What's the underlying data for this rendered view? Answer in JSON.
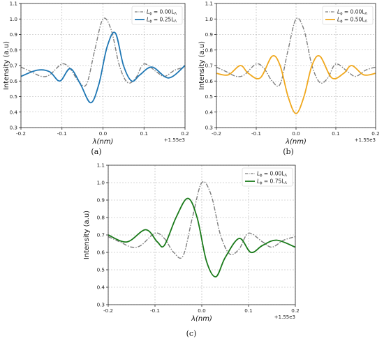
{
  "chart_data": [
    {
      "type": "line",
      "panel_label": "(a)",
      "xlabel": "λ(nm)",
      "ylabel": "Intensity (a.u)",
      "x_offset_text": "+1.55e3",
      "xlim": [
        -0.2,
        0.2
      ],
      "ylim": [
        0.3,
        1.1
      ],
      "xticks": [
        "-0.2",
        "-0.1",
        "0.0",
        "0.1",
        "0.2"
      ],
      "yticks": [
        "0.3",
        "0.4",
        "0.5",
        "0.6",
        "0.7",
        "0.8",
        "0.9",
        "1.0",
        "1.1"
      ],
      "grid": true,
      "legend_position": "top-right",
      "series": [
        {
          "name": "Lϕ = 0.00LΛ",
          "legend_main": "L",
          "legend_sub1": "ϕ",
          "legend_mid": " = 0.00L",
          "legend_sub2": "Λ",
          "color": "#7f7f7f",
          "dash": "dashdot",
          "x": [
            -0.2,
            -0.175,
            -0.15,
            -0.13,
            -0.1,
            -0.08,
            -0.06,
            -0.04,
            -0.02,
            0.0,
            0.02,
            0.04,
            0.06,
            0.08,
            0.1,
            0.13,
            0.15,
            0.175,
            0.2
          ],
          "y": [
            0.69,
            0.66,
            0.63,
            0.64,
            0.71,
            0.68,
            0.6,
            0.58,
            0.8,
            1.0,
            0.93,
            0.7,
            0.59,
            0.62,
            0.71,
            0.66,
            0.63,
            0.67,
            0.69
          ]
        },
        {
          "name": "Lϕ = 0.25LΛ",
          "legend_main": "L",
          "legend_sub1": "ϕ",
          "legend_mid": " = 0.25L",
          "legend_sub2": "Λ",
          "color": "#1f77b4",
          "dash": "solid",
          "x": [
            -0.2,
            -0.16,
            -0.13,
            -0.105,
            -0.08,
            -0.055,
            -0.03,
            -0.01,
            0.01,
            0.03,
            0.05,
            0.07,
            0.09,
            0.12,
            0.16,
            0.2
          ],
          "y": [
            0.63,
            0.67,
            0.66,
            0.6,
            0.68,
            0.58,
            0.46,
            0.58,
            0.82,
            0.91,
            0.7,
            0.6,
            0.64,
            0.69,
            0.62,
            0.7
          ]
        }
      ]
    },
    {
      "type": "line",
      "panel_label": "(b)",
      "xlabel": "λ(nm)",
      "ylabel": "Intensity (a.u)",
      "x_offset_text": "+1.55e3",
      "xlim": [
        -0.2,
        0.2
      ],
      "ylim": [
        0.3,
        1.1
      ],
      "xticks": [
        "-0.2",
        "-0.1",
        "0.0",
        "0.1",
        "0.2"
      ],
      "yticks": [
        "0.3",
        "0.4",
        "0.5",
        "0.6",
        "0.7",
        "0.8",
        "0.9",
        "1.0",
        "1.1"
      ],
      "grid": true,
      "legend_position": "top-right",
      "series": [
        {
          "name": "Lϕ = 0.00LΛ",
          "legend_main": "L",
          "legend_sub1": "ϕ",
          "legend_mid": " = 0.00L",
          "legend_sub2": "Λ",
          "color": "#7f7f7f",
          "dash": "dashdot",
          "x": [
            -0.2,
            -0.175,
            -0.15,
            -0.13,
            -0.1,
            -0.08,
            -0.06,
            -0.04,
            -0.02,
            0.0,
            0.02,
            0.04,
            0.06,
            0.08,
            0.1,
            0.13,
            0.15,
            0.175,
            0.2
          ],
          "y": [
            0.69,
            0.66,
            0.63,
            0.64,
            0.71,
            0.68,
            0.6,
            0.58,
            0.8,
            1.0,
            0.93,
            0.7,
            0.59,
            0.62,
            0.71,
            0.66,
            0.63,
            0.67,
            0.69
          ]
        },
        {
          "name": "Lϕ = 0.50LΛ",
          "legend_main": "L",
          "legend_sub1": "ϕ",
          "legend_mid": " = 0.50L",
          "legend_sub2": "Λ",
          "color": "#f0a81e",
          "dash": "solid",
          "x": [
            -0.2,
            -0.17,
            -0.14,
            -0.12,
            -0.09,
            -0.06,
            -0.04,
            -0.02,
            0.0,
            0.02,
            0.04,
            0.06,
            0.09,
            0.12,
            0.14,
            0.17,
            0.2
          ],
          "y": [
            0.65,
            0.64,
            0.7,
            0.65,
            0.62,
            0.76,
            0.7,
            0.5,
            0.39,
            0.5,
            0.7,
            0.76,
            0.62,
            0.65,
            0.7,
            0.64,
            0.65
          ]
        }
      ]
    },
    {
      "type": "line",
      "panel_label": "(c)",
      "xlabel": "λ(nm)",
      "ylabel": "Intensity (a.u)",
      "x_offset_text": "+1.55e3",
      "xlim": [
        -0.2,
        0.2
      ],
      "ylim": [
        0.3,
        1.1
      ],
      "xticks": [
        "-0.2",
        "-0.1",
        "0.0",
        "0.1",
        "0.2"
      ],
      "yticks": [
        "0.3",
        "0.4",
        "0.5",
        "0.6",
        "0.7",
        "0.8",
        "0.9",
        "1.0",
        "1.1"
      ],
      "grid": true,
      "legend_position": "top-right",
      "series": [
        {
          "name": "Lϕ = 0.00LΛ",
          "legend_main": "L",
          "legend_sub1": "ϕ",
          "legend_mid": " = 0.00L",
          "legend_sub2": "Λ",
          "color": "#7f7f7f",
          "dash": "dashdot",
          "x": [
            -0.2,
            -0.175,
            -0.15,
            -0.13,
            -0.1,
            -0.08,
            -0.06,
            -0.04,
            -0.02,
            0.0,
            0.02,
            0.04,
            0.06,
            0.08,
            0.1,
            0.13,
            0.15,
            0.175,
            0.2
          ],
          "y": [
            0.69,
            0.66,
            0.63,
            0.64,
            0.71,
            0.68,
            0.6,
            0.58,
            0.8,
            1.0,
            0.93,
            0.7,
            0.59,
            0.62,
            0.71,
            0.66,
            0.63,
            0.67,
            0.69
          ]
        },
        {
          "name": "Lϕ = 0.75LΛ",
          "legend_main": "L",
          "legend_sub1": "ϕ",
          "legend_mid": " = 0.75L",
          "legend_sub2": "Λ",
          "color": "#1a7a1a",
          "dash": "solid",
          "x": [
            -0.2,
            -0.16,
            -0.12,
            -0.095,
            -0.08,
            -0.055,
            -0.03,
            -0.01,
            0.01,
            0.03,
            0.05,
            0.08,
            0.105,
            0.13,
            0.16,
            0.2
          ],
          "y": [
            0.7,
            0.66,
            0.73,
            0.66,
            0.64,
            0.8,
            0.91,
            0.8,
            0.55,
            0.46,
            0.57,
            0.68,
            0.6,
            0.64,
            0.67,
            0.63
          ]
        }
      ]
    }
  ]
}
